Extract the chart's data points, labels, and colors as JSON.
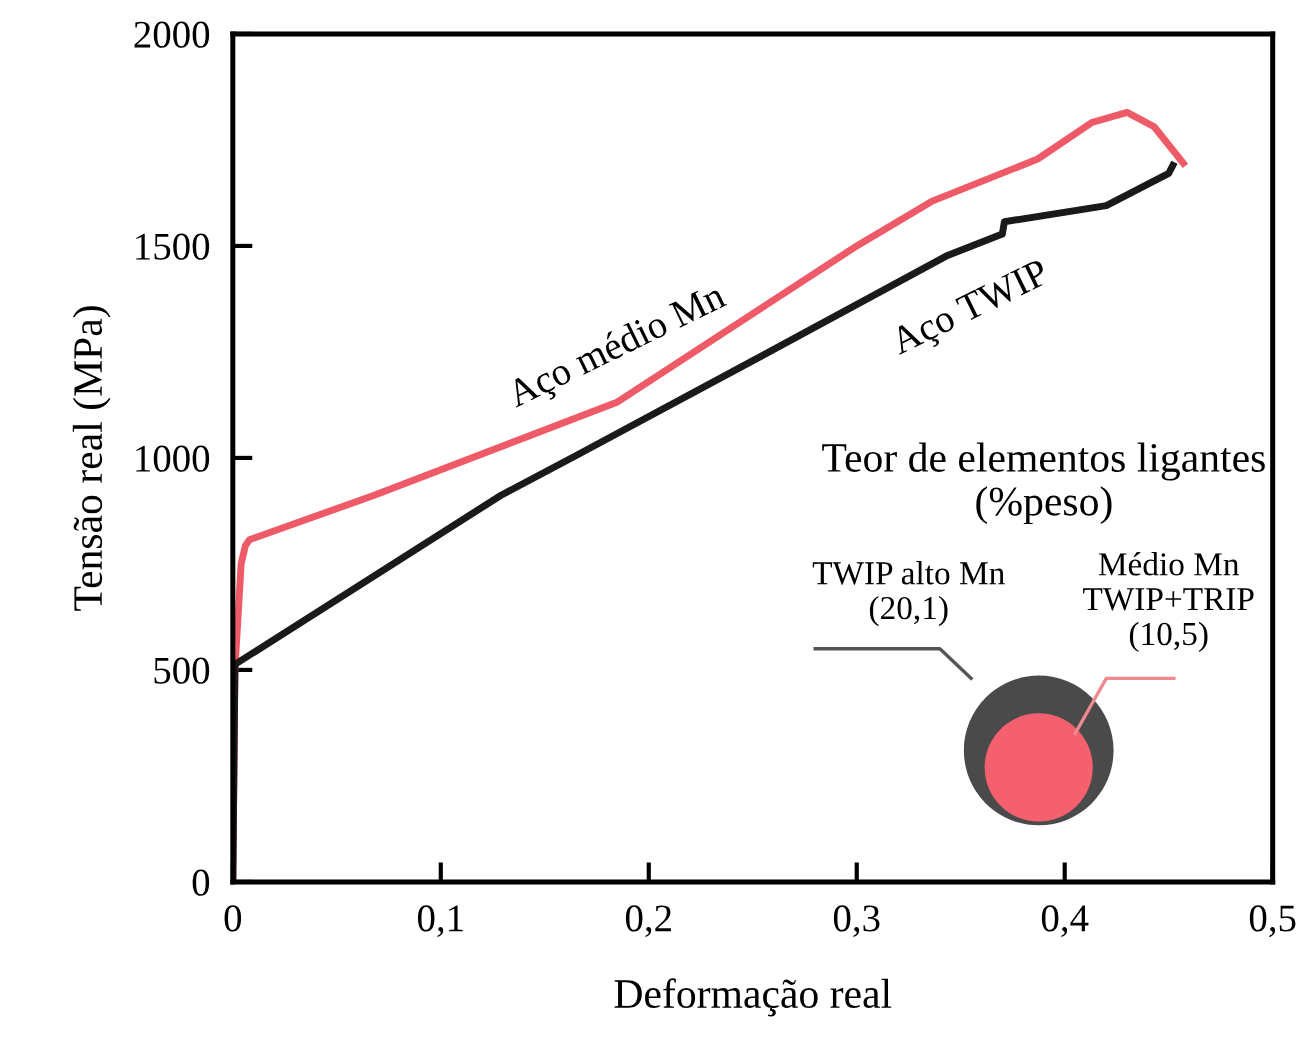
{
  "chart_data": {
    "type": "line",
    "xlabel": "Deformação real",
    "ylabel": "Tensão real (MPa)",
    "xlim": [
      0,
      0.5
    ],
    "ylim": [
      0,
      2000
    ],
    "xticks": [
      {
        "value": 0,
        "label": "0"
      },
      {
        "value": 0.1,
        "label": "0,1"
      },
      {
        "value": 0.2,
        "label": "0,2"
      },
      {
        "value": 0.3,
        "label": "0,3"
      },
      {
        "value": 0.4,
        "label": "0,4"
      },
      {
        "value": 0.5,
        "label": "0,5"
      }
    ],
    "yticks": [
      0,
      500,
      1000,
      1500,
      2000
    ],
    "grid": false,
    "legend": false,
    "marker": "none",
    "line_style": "solid",
    "series": [
      {
        "name": "Aço médio Mn",
        "color": "#ee5a68",
        "x": [
          0,
          0.001,
          0.004,
          0.006,
          0.008,
          0.068,
          0.185,
          0.3,
          0.336,
          0.387,
          0.413,
          0.43,
          0.443,
          0.457
        ],
        "values": [
          0,
          500,
          750,
          793,
          807,
          912,
          1132,
          1500,
          1605,
          1705,
          1791,
          1815,
          1781,
          1695
        ]
      },
      {
        "name": "Aço TWIP",
        "color": "#1a1a1a",
        "x": [
          0,
          0.001,
          0.129,
          0.166,
          0.253,
          0.343,
          0.37,
          0.371,
          0.42,
          0.45,
          0.452
        ],
        "values": [
          0,
          513,
          912,
          1008,
          1237,
          1476,
          1528,
          1557,
          1595,
          1671,
          1690
        ]
      }
    ],
    "annotations": [
      "Teor de elementos ligantes\n(%peso)",
      "TWIP alto Mn\n(20,1)",
      "Médio Mn\nTWIP+TRIP\n(10,5)"
    ]
  }
}
